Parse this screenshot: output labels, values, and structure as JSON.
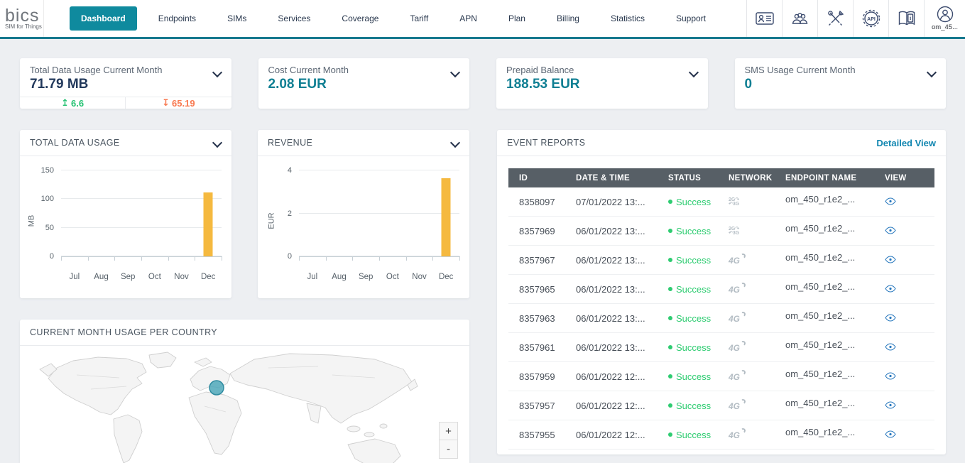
{
  "header": {
    "logo": {
      "brand": "bics",
      "tagline": "SIM for Things"
    },
    "nav": [
      {
        "label": "Dashboard",
        "active": true
      },
      {
        "label": "Endpoints",
        "active": false
      },
      {
        "label": "SIMs",
        "active": false
      },
      {
        "label": "Services",
        "active": false
      },
      {
        "label": "Coverage",
        "active": false
      },
      {
        "label": "Tariff",
        "active": false
      },
      {
        "label": "APN",
        "active": false
      },
      {
        "label": "Plan",
        "active": false
      },
      {
        "label": "Billing",
        "active": false
      },
      {
        "label": "Statistics",
        "active": false
      },
      {
        "label": "Support",
        "active": false
      }
    ],
    "action_icons": [
      "contact-card-icon",
      "users-icon",
      "tools-icon",
      "api-settings-icon",
      "documentation-icon",
      "account-icon"
    ],
    "user_label": "om_45...",
    "accent_color": "#0f8a9e"
  },
  "stat_cards": [
    {
      "title": "Total Data Usage Current Month",
      "value": "71.79 MB",
      "upload": "6.6",
      "download": "65.19"
    },
    {
      "title": "Cost Current Month",
      "value": "2.08 EUR"
    },
    {
      "title": "Prepaid Balance",
      "value": "188.53 EUR"
    },
    {
      "title": "SMS Usage Current Month",
      "value": "0"
    }
  ],
  "chart_data": [
    {
      "type": "bar",
      "title": "TOTAL DATA USAGE",
      "categories": [
        "Jul",
        "Aug",
        "Sep",
        "Oct",
        "Nov",
        "Dec"
      ],
      "values": [
        0,
        0,
        0,
        0,
        0,
        112
      ],
      "ylabel": "MB",
      "xlabel": "",
      "ylim": [
        0,
        150
      ],
      "yticks": [
        0,
        50,
        100,
        150
      ],
      "bar_color": "#f5b93f",
      "grid": true,
      "legend": false
    },
    {
      "type": "bar",
      "title": "REVENUE",
      "categories": [
        "Jul",
        "Aug",
        "Sep",
        "Oct",
        "Nov",
        "Dec"
      ],
      "values": [
        0,
        0,
        0,
        0,
        0,
        3.65
      ],
      "ylabel": "EUR",
      "xlabel": "",
      "ylim": [
        0,
        4
      ],
      "yticks": [
        0,
        2,
        4
      ],
      "bar_color": "#f5b93f",
      "grid": true,
      "legend": false
    }
  ],
  "map_card": {
    "title": "CURRENT MONTH USAGE PER COUNTRY",
    "zoom_in": "+",
    "zoom_out": "-",
    "marker_color": "#4fa8ba"
  },
  "event_reports": {
    "title": "EVENT REPORTS",
    "detailed_view_label": "Detailed View",
    "columns": [
      "ID",
      "DATE & TIME",
      "STATUS",
      "NETWORK",
      "ENDPOINT NAME",
      "VIEW"
    ],
    "status_color": "#2ecc71",
    "rows": [
      {
        "id": "8358097",
        "datetime": "07/01/2022 13:...",
        "status": "Success",
        "network": "2G3G",
        "endpoint": "om_450_r1e2_..."
      },
      {
        "id": "8357969",
        "datetime": "06/01/2022 13:...",
        "status": "Success",
        "network": "2G3G",
        "endpoint": "om_450_r1e2_..."
      },
      {
        "id": "8357967",
        "datetime": "06/01/2022 13:...",
        "status": "Success",
        "network": "4G",
        "endpoint": "om_450_r1e2_..."
      },
      {
        "id": "8357965",
        "datetime": "06/01/2022 13:...",
        "status": "Success",
        "network": "4G",
        "endpoint": "om_450_r1e2_..."
      },
      {
        "id": "8357963",
        "datetime": "06/01/2022 13:...",
        "status": "Success",
        "network": "4G",
        "endpoint": "om_450_r1e2_..."
      },
      {
        "id": "8357961",
        "datetime": "06/01/2022 13:...",
        "status": "Success",
        "network": "4G",
        "endpoint": "om_450_r1e2_..."
      },
      {
        "id": "8357959",
        "datetime": "06/01/2022 12:...",
        "status": "Success",
        "network": "4G",
        "endpoint": "om_450_r1e2_..."
      },
      {
        "id": "8357957",
        "datetime": "06/01/2022 12:...",
        "status": "Success",
        "network": "4G",
        "endpoint": "om_450_r1e2_..."
      },
      {
        "id": "8357955",
        "datetime": "06/01/2022 12:...",
        "status": "Success",
        "network": "4G",
        "endpoint": "om_450_r1e2_..."
      }
    ]
  }
}
